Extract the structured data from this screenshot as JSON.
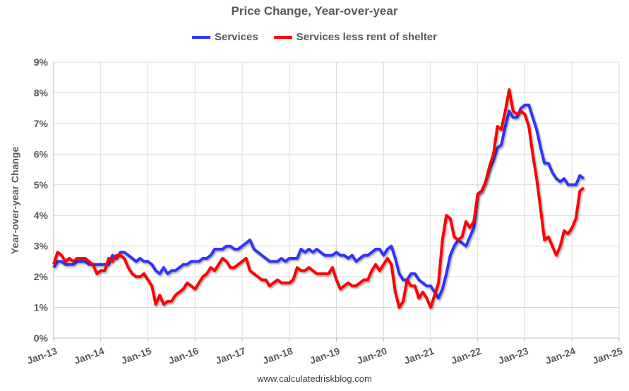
{
  "chart_data": {
    "type": "line",
    "title": "Price Change, Year-over-year",
    "ylabel": "Year-over-year Change",
    "xlabel": "",
    "x_start": "Jan-13",
    "x_frequency": "monthly",
    "x_ticks": [
      "Jan-13",
      "Jan-14",
      "Jan-15",
      "Jan-16",
      "Jan-17",
      "Jan-18",
      "Jan-19",
      "Jan-20",
      "Jan-21",
      "Jan-22",
      "Jan-23",
      "Jan-24",
      "Jan-25"
    ],
    "y_ticks": [
      "0%",
      "1%",
      "2%",
      "3%",
      "4%",
      "5%",
      "6%",
      "7%",
      "8%",
      "9%"
    ],
    "ylim": [
      0,
      9
    ],
    "grid": true,
    "legend_position": "top",
    "series": [
      {
        "name": "Services",
        "color": "#3333FF",
        "values": [
          2.3,
          2.5,
          2.5,
          2.4,
          2.4,
          2.4,
          2.5,
          2.5,
          2.5,
          2.4,
          2.4,
          2.4,
          2.4,
          2.4,
          2.4,
          2.7,
          2.6,
          2.8,
          2.8,
          2.7,
          2.6,
          2.5,
          2.6,
          2.5,
          2.5,
          2.4,
          2.2,
          2.1,
          2.3,
          2.1,
          2.2,
          2.2,
          2.3,
          2.4,
          2.4,
          2.5,
          2.5,
          2.5,
          2.6,
          2.6,
          2.7,
          2.9,
          2.9,
          2.9,
          3.0,
          3.0,
          2.9,
          2.9,
          3.0,
          3.1,
          3.2,
          2.9,
          2.8,
          2.7,
          2.6,
          2.5,
          2.5,
          2.5,
          2.6,
          2.5,
          2.6,
          2.6,
          2.6,
          2.9,
          2.8,
          2.9,
          2.8,
          2.9,
          2.8,
          2.7,
          2.7,
          2.7,
          2.8,
          2.7,
          2.7,
          2.6,
          2.7,
          2.5,
          2.6,
          2.7,
          2.7,
          2.8,
          2.9,
          2.9,
          2.7,
          2.9,
          3.0,
          2.6,
          2.1,
          1.9,
          1.9,
          2.1,
          2.1,
          1.9,
          1.8,
          1.7,
          1.7,
          1.5,
          1.3,
          1.6,
          2.1,
          2.7,
          3.0,
          3.2,
          3.1,
          3.0,
          3.3,
          3.6,
          4.7,
          4.8,
          5.1,
          5.5,
          5.8,
          6.2,
          6.3,
          6.9,
          7.4,
          7.2,
          7.2,
          7.5,
          7.6,
          7.6,
          7.2,
          6.8,
          6.2,
          5.7,
          5.7,
          5.4,
          5.2,
          5.1,
          5.2,
          5.0,
          5.0,
          5.0,
          5.3,
          5.2
        ]
      },
      {
        "name": "Services less rent of shelter",
        "color": "#FF0000",
        "values": [
          2.4,
          2.8,
          2.7,
          2.5,
          2.6,
          2.5,
          2.6,
          2.6,
          2.6,
          2.5,
          2.4,
          2.1,
          2.2,
          2.2,
          2.6,
          2.5,
          2.7,
          2.7,
          2.6,
          2.3,
          2.1,
          2.0,
          2.0,
          2.1,
          1.9,
          1.7,
          1.1,
          1.4,
          1.1,
          1.2,
          1.2,
          1.4,
          1.5,
          1.6,
          1.8,
          1.7,
          1.6,
          1.8,
          2.0,
          2.1,
          2.3,
          2.2,
          2.4,
          2.6,
          2.5,
          2.3,
          2.3,
          2.4,
          2.5,
          2.6,
          2.2,
          2.1,
          2.0,
          1.9,
          1.9,
          1.7,
          1.8,
          1.9,
          1.8,
          1.8,
          1.8,
          1.9,
          2.3,
          2.2,
          2.2,
          2.3,
          2.2,
          2.1,
          2.1,
          2.1,
          2.1,
          2.3,
          1.9,
          1.6,
          1.7,
          1.8,
          1.7,
          1.7,
          1.8,
          1.9,
          1.9,
          2.2,
          2.4,
          2.2,
          2.4,
          2.6,
          2.4,
          1.5,
          1.0,
          1.2,
          1.9,
          1.7,
          1.7,
          1.3,
          1.5,
          1.3,
          1.0,
          1.4,
          1.8,
          3.2,
          4.0,
          3.9,
          3.3,
          3.2,
          3.3,
          3.8,
          3.6,
          3.8,
          4.7,
          4.8,
          5.1,
          5.6,
          6.0,
          6.9,
          6.8,
          7.4,
          8.1,
          7.4,
          7.3,
          7.4,
          7.3,
          6.9,
          6.0,
          5.2,
          4.2,
          3.2,
          3.3,
          3.0,
          2.7,
          3.0,
          3.5,
          3.4,
          3.6,
          3.9,
          4.8,
          4.9
        ]
      }
    ]
  },
  "footer": "www.calculatedriskblog.com"
}
